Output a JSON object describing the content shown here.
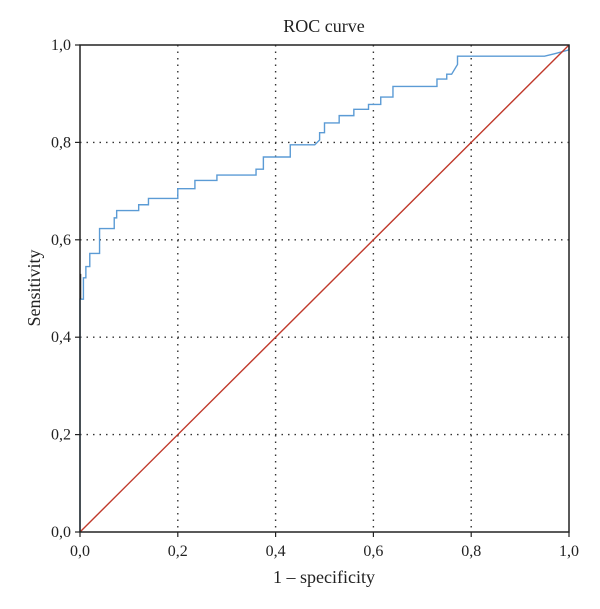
{
  "chart_data": {
    "type": "line",
    "title": "ROC curve",
    "xlabel": "1 – specificity",
    "ylabel": "Sensitivity",
    "xlim": [
      0,
      1
    ],
    "ylim": [
      0,
      1
    ],
    "x_ticks": [
      "0,0",
      "0,2",
      "0,4",
      "0,6",
      "0,8",
      "1,0"
    ],
    "y_ticks": [
      "0,0",
      "0,2",
      "0,4",
      "0,6",
      "0,8",
      "1,0"
    ],
    "grid": true,
    "series": [
      {
        "color": "#5b9bd5",
        "points": [
          [
            0.0,
            0.0
          ],
          [
            0.0,
            0.478
          ],
          [
            0.007,
            0.478
          ],
          [
            0.007,
            0.522
          ],
          [
            0.012,
            0.522
          ],
          [
            0.012,
            0.545
          ],
          [
            0.02,
            0.545
          ],
          [
            0.02,
            0.572
          ],
          [
            0.04,
            0.572
          ],
          [
            0.04,
            0.623
          ],
          [
            0.07,
            0.623
          ],
          [
            0.07,
            0.645
          ],
          [
            0.075,
            0.645
          ],
          [
            0.075,
            0.66
          ],
          [
            0.12,
            0.66
          ],
          [
            0.12,
            0.672
          ],
          [
            0.14,
            0.672
          ],
          [
            0.14,
            0.685
          ],
          [
            0.2,
            0.685
          ],
          [
            0.2,
            0.705
          ],
          [
            0.235,
            0.705
          ],
          [
            0.235,
            0.722
          ],
          [
            0.28,
            0.722
          ],
          [
            0.28,
            0.733
          ],
          [
            0.36,
            0.733
          ],
          [
            0.36,
            0.745
          ],
          [
            0.375,
            0.745
          ],
          [
            0.375,
            0.77
          ],
          [
            0.43,
            0.77
          ],
          [
            0.43,
            0.795
          ],
          [
            0.48,
            0.795
          ],
          [
            0.49,
            0.805
          ],
          [
            0.49,
            0.82
          ],
          [
            0.5,
            0.82
          ],
          [
            0.5,
            0.84
          ],
          [
            0.53,
            0.84
          ],
          [
            0.53,
            0.855
          ],
          [
            0.56,
            0.855
          ],
          [
            0.56,
            0.868
          ],
          [
            0.59,
            0.868
          ],
          [
            0.59,
            0.878
          ],
          [
            0.615,
            0.878
          ],
          [
            0.615,
            0.893
          ],
          [
            0.64,
            0.893
          ],
          [
            0.64,
            0.915
          ],
          [
            0.73,
            0.915
          ],
          [
            0.73,
            0.93
          ],
          [
            0.75,
            0.93
          ],
          [
            0.75,
            0.94
          ],
          [
            0.76,
            0.94
          ],
          [
            0.772,
            0.96
          ],
          [
            0.772,
            0.977
          ],
          [
            0.95,
            0.977
          ],
          [
            0.97,
            0.982
          ],
          [
            1.0,
            0.99
          ],
          [
            1.0,
            1.0
          ]
        ]
      },
      {
        "color": "#c0392b",
        "points": [
          [
            0.0,
            0.0
          ],
          [
            1.0,
            1.0
          ]
        ]
      }
    ]
  }
}
